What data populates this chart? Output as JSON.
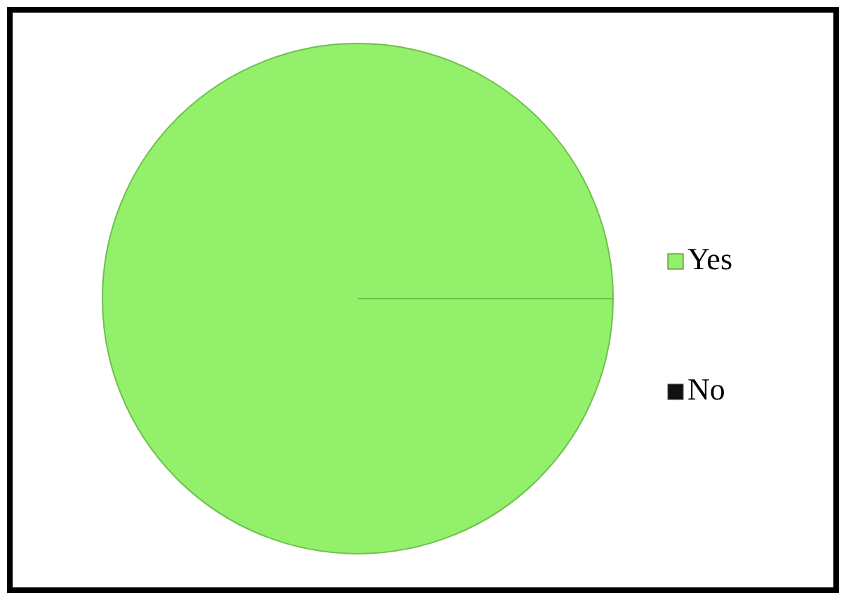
{
  "chart_data": {
    "type": "pie",
    "categories": [
      "Yes",
      "No"
    ],
    "values": [
      100,
      0
    ],
    "colors": [
      "#92f06a",
      "#111111"
    ],
    "legend": "right"
  }
}
